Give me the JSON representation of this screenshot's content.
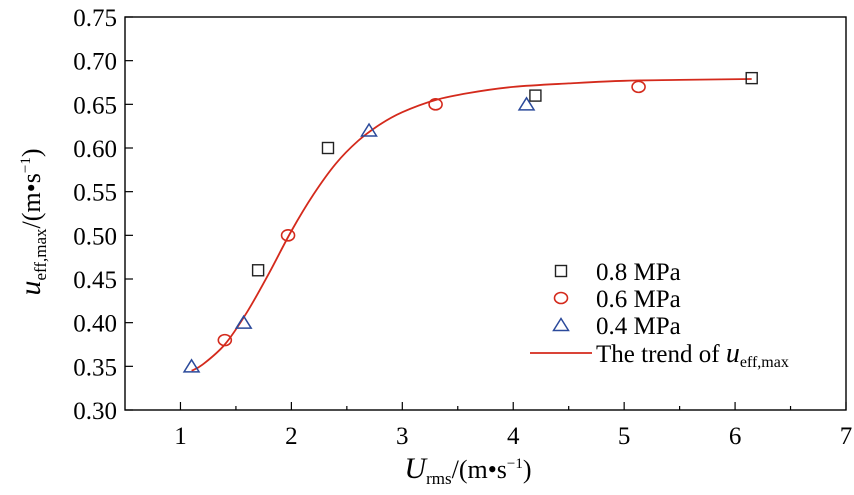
{
  "chart_data": {
    "type": "scatter",
    "title": "",
    "xlabel": {
      "main": "U",
      "sub": "rms",
      "unit_prefix": "/(m•s",
      "unit_sup": "−1",
      "unit_suffix": ")"
    },
    "ylabel": {
      "main": "u",
      "sub": "eff,max",
      "unit_prefix": "/(m•s",
      "unit_sup": "−1",
      "unit_suffix": ")"
    },
    "xlim": [
      0.5,
      7
    ],
    "ylim": [
      0.3,
      0.75
    ],
    "xticks": [
      1,
      2,
      3,
      4,
      5,
      6,
      7
    ],
    "yticks": [
      0.3,
      0.35,
      0.4,
      0.45,
      0.5,
      0.55,
      0.6,
      0.65,
      0.7,
      0.75
    ],
    "xtick_labels": [
      "1",
      "2",
      "3",
      "4",
      "5",
      "6",
      "7"
    ],
    "ytick_labels": [
      "0.30",
      "0.35",
      "0.40",
      "0.45",
      "0.50",
      "0.55",
      "0.60",
      "0.65",
      "0.70",
      "0.75"
    ],
    "grid": false,
    "legend_position": "bottom-right",
    "series": [
      {
        "name": "0.8 MPa",
        "marker": "square",
        "color": "#222222",
        "x": [
          1.7,
          2.33,
          4.2,
          6.15
        ],
        "y": [
          0.46,
          0.6,
          0.66,
          0.68
        ]
      },
      {
        "name": "0.6 MPa",
        "marker": "circle",
        "color": "#d42a1c",
        "x": [
          1.4,
          1.97,
          3.3,
          5.13
        ],
        "y": [
          0.38,
          0.5,
          0.65,
          0.67
        ]
      },
      {
        "name": "0.4 MPa",
        "marker": "triangle",
        "color": "#2b4a9b",
        "x": [
          1.1,
          1.57,
          2.7,
          4.12
        ],
        "y": [
          0.35,
          0.4,
          0.62,
          0.65
        ]
      }
    ],
    "trend": {
      "legend_prefix": "The trend of ",
      "legend_main": "u",
      "legend_sub": "eff,max",
      "color": "#d42a1c",
      "x": [
        1.1,
        1.2,
        1.4,
        1.6,
        1.8,
        2.0,
        2.2,
        2.4,
        2.6,
        2.8,
        3.0,
        3.3,
        3.6,
        4.0,
        4.5,
        5.0,
        5.5,
        6.15
      ],
      "y": [
        0.345,
        0.352,
        0.375,
        0.412,
        0.457,
        0.505,
        0.547,
        0.582,
        0.608,
        0.627,
        0.641,
        0.655,
        0.663,
        0.67,
        0.674,
        0.677,
        0.678,
        0.679
      ]
    }
  }
}
